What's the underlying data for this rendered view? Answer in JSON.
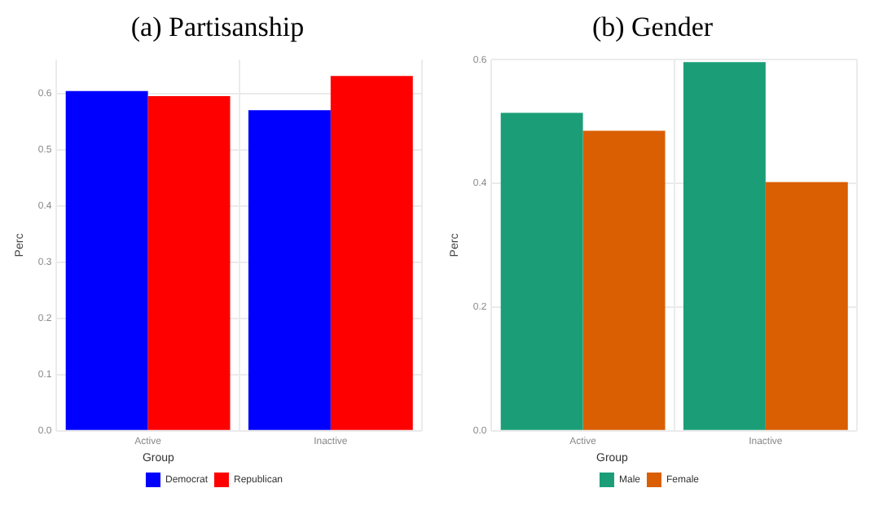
{
  "chart_data": [
    {
      "type": "bar",
      "title": "(a) Partisanship",
      "ylabel": "Perc",
      "legend_title": "Group",
      "categories": [
        "Active",
        "Inactive"
      ],
      "series": [
        {
          "name": "Democrat",
          "color": "#0000ff",
          "values": [
            0.604,
            0.57
          ]
        },
        {
          "name": "Republican",
          "color": "#ff0000",
          "values": [
            0.595,
            0.631
          ]
        }
      ],
      "ylim": [
        0,
        0.66
      ],
      "yticks": [
        {
          "value": 0,
          "label": "0.0"
        },
        0.1,
        0.2,
        0.3,
        0.4,
        0.5,
        0.6
      ],
      "grid": true,
      "legend": "bottom"
    },
    {
      "type": "bar",
      "title": "(b) Gender",
      "ylabel": "Perc",
      "legend_title": "Group",
      "categories": [
        "Active",
        "Inactive"
      ],
      "series": [
        {
          "name": "Male",
          "color": "#1b9e77",
          "values": [
            0.514,
            0.596
          ]
        },
        {
          "name": "Female",
          "color": "#d95f02",
          "values": [
            0.485,
            0.402
          ]
        }
      ],
      "ylim": [
        0,
        0.6
      ],
      "yticks": [
        {
          "value": 0,
          "label": "0.0"
        },
        0.2,
        0.4,
        0.6
      ],
      "grid": true,
      "legend": "bottom"
    }
  ]
}
